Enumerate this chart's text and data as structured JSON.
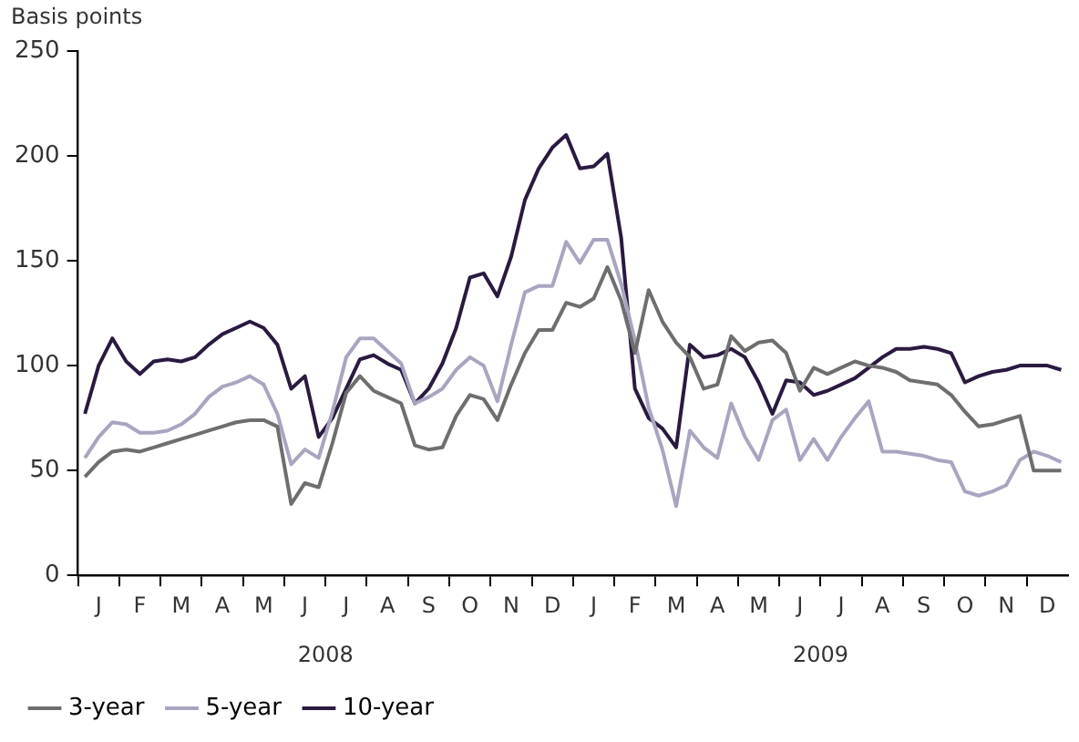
{
  "chart_data": {
    "type": "line",
    "ylabel": "Basis points",
    "categories": [
      null,
      "J",
      null,
      null,
      "F",
      null,
      null,
      "M",
      null,
      null,
      "A",
      null,
      null,
      "M",
      null,
      null,
      "J",
      null,
      null,
      "J",
      null,
      null,
      "A",
      null,
      null,
      "S",
      null,
      null,
      "O",
      null,
      null,
      "N",
      null,
      null,
      "D",
      null,
      null,
      "J",
      null,
      null,
      "F",
      null,
      null,
      "M",
      null,
      null,
      "A",
      null,
      null,
      "M",
      null,
      null,
      "J",
      null,
      null,
      "J",
      null,
      null,
      "A",
      null,
      null,
      "S",
      null,
      null,
      "O",
      null,
      null,
      "N",
      null,
      null,
      "D",
      null
    ],
    "ylim": [
      0,
      250
    ],
    "yticks": [
      0,
      50,
      100,
      150,
      200,
      250
    ],
    "annotations": [
      "2008",
      "2009"
    ],
    "grid": false,
    "legend": "bottom left",
    "marker": "none",
    "line_style": "solid",
    "series": [
      {
        "name": "3-year",
        "color": "#6e6e6e",
        "values": [
          47,
          54,
          59,
          60,
          59,
          61,
          63,
          65,
          67,
          69,
          71,
          73,
          74,
          74,
          71,
          34,
          44,
          42,
          63,
          87,
          95,
          88,
          85,
          82,
          62,
          60,
          61,
          76,
          86,
          84,
          74,
          91,
          106,
          117,
          117,
          130,
          128,
          132,
          147,
          131,
          106,
          136,
          121,
          111,
          104,
          89,
          91,
          114,
          107,
          111,
          112,
          106,
          88,
          99,
          96,
          99,
          102,
          100,
          99,
          97,
          93,
          92,
          91,
          86,
          78,
          71,
          72,
          74,
          76,
          50,
          50,
          50
        ]
      },
      {
        "name": "5-year",
        "color": "#a9a5c0",
        "values": [
          56,
          66,
          73,
          72,
          68,
          68,
          69,
          72,
          77,
          85,
          90,
          92,
          95,
          91,
          77,
          53,
          60,
          56,
          78,
          104,
          113,
          113,
          107,
          101,
          82,
          85,
          89,
          98,
          104,
          100,
          83,
          110,
          135,
          138,
          138,
          159,
          149,
          160,
          160,
          139,
          112,
          80,
          60,
          33,
          69,
          61,
          56,
          82,
          66,
          55,
          74,
          79,
          55,
          65,
          55,
          66,
          75,
          83,
          59,
          59,
          58,
          57,
          55,
          54,
          40,
          38,
          40,
          43,
          55,
          59,
          57,
          54
        ]
      },
      {
        "name": "10-year",
        "color": "#2a1a40",
        "values": [
          77,
          100,
          113,
          102,
          96,
          102,
          103,
          102,
          104,
          110,
          115,
          118,
          121,
          118,
          110,
          89,
          95,
          66,
          75,
          89,
          103,
          105,
          101,
          98,
          82,
          89,
          101,
          118,
          142,
          144,
          133,
          152,
          179,
          194,
          204,
          210,
          194,
          195,
          201,
          161,
          89,
          75,
          70,
          61,
          110,
          104,
          105,
          108,
          104,
          92,
          77,
          93,
          92,
          86,
          88,
          91,
          94,
          99,
          104,
          108,
          108,
          109,
          108,
          106,
          92,
          95,
          97,
          98,
          100,
          100,
          100,
          98
        ]
      }
    ]
  }
}
